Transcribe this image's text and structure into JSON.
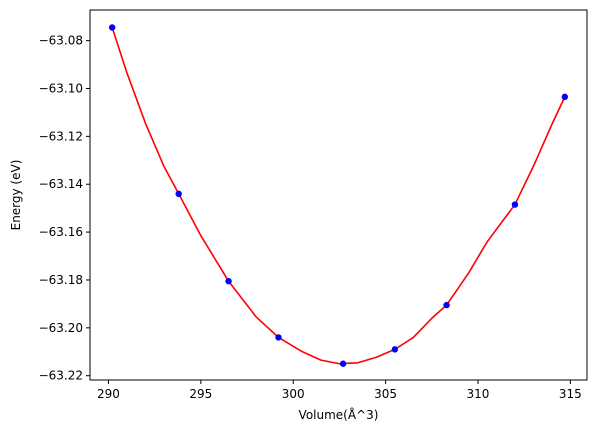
{
  "chart_data": {
    "type": "scatter",
    "title": "",
    "xlabel": "Volume(Å^3)",
    "ylabel": "Energy (eV)",
    "xlim": [
      289.0,
      315.9
    ],
    "ylim": [
      -63.2218,
      -63.0672
    ],
    "xticks": [
      290,
      295,
      300,
      305,
      310,
      315
    ],
    "xtick_labels": [
      "290",
      "295",
      "300",
      "305",
      "310",
      "315"
    ],
    "yticks": [
      -63.08,
      -63.1,
      -63.12,
      -63.14,
      -63.16,
      -63.18,
      -63.2,
      -63.22
    ],
    "ytick_labels": [
      "−63.08",
      "−63.10",
      "−63.12",
      "−63.14",
      "−63.16",
      "−63.18",
      "−63.20",
      "−63.22"
    ],
    "grid": false,
    "series": [
      {
        "kind": "points",
        "color": "#0000ff",
        "x": [
          290.2,
          293.8,
          296.5,
          299.2,
          302.7,
          305.5,
          308.3,
          312.0,
          314.7
        ],
        "y": [
          -63.0745,
          -63.144,
          -63.1805,
          -63.204,
          -63.215,
          -63.209,
          -63.1905,
          -63.1485,
          -63.1035
        ]
      },
      {
        "kind": "fit",
        "color": "#ff0000",
        "x": [
          290.2,
          291.0,
          292.0,
          293.0,
          293.8,
          295.0,
          296.5,
          298.0,
          299.2,
          300.5,
          301.5,
          302.5,
          303.5,
          304.5,
          305.5,
          306.5,
          307.5,
          308.3,
          309.5,
          310.5,
          312.0,
          313.0,
          314.0,
          314.7
        ],
        "y": [
          -63.0745,
          -63.0935,
          -63.1145,
          -63.1325,
          -63.144,
          -63.1615,
          -63.1805,
          -63.1955,
          -63.204,
          -63.21,
          -63.2135,
          -63.215,
          -63.2146,
          -63.2123,
          -63.209,
          -63.204,
          -63.196,
          -63.1905,
          -63.177,
          -63.164,
          -63.1485,
          -63.1325,
          -63.115,
          -63.1035
        ]
      }
    ]
  }
}
